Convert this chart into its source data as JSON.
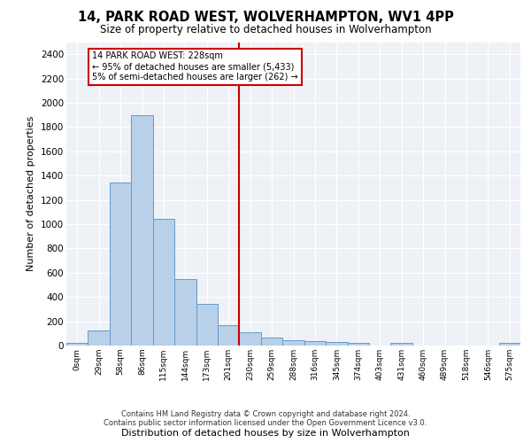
{
  "title1": "14, PARK ROAD WEST, WOLVERHAMPTON, WV1 4PP",
  "title2": "Size of property relative to detached houses in Wolverhampton",
  "xlabel": "Distribution of detached houses by size in Wolverhampton",
  "ylabel": "Number of detached properties",
  "footer1": "Contains HM Land Registry data © Crown copyright and database right 2024.",
  "footer2": "Contains public sector information licensed under the Open Government Licence v3.0.",
  "bin_labels": [
    "0sqm",
    "29sqm",
    "58sqm",
    "86sqm",
    "115sqm",
    "144sqm",
    "173sqm",
    "201sqm",
    "230sqm",
    "259sqm",
    "288sqm",
    "316sqm",
    "345sqm",
    "374sqm",
    "403sqm",
    "431sqm",
    "460sqm",
    "489sqm",
    "518sqm",
    "546sqm",
    "575sqm"
  ],
  "bar_values": [
    20,
    125,
    1345,
    1895,
    1045,
    545,
    340,
    170,
    110,
    65,
    42,
    33,
    28,
    20,
    0,
    25,
    0,
    0,
    0,
    0,
    20
  ],
  "bar_color": "#b8d0e8",
  "bar_edge_color": "#6699cc",
  "vline_x": 8,
  "annotation_line1": "14 PARK ROAD WEST: 228sqm",
  "annotation_line2": "← 95% of detached houses are smaller (5,433)",
  "annotation_line3": "5% of semi-detached houses are larger (262) →",
  "ylim": [
    0,
    2500
  ],
  "yticks": [
    0,
    200,
    400,
    600,
    800,
    1000,
    1200,
    1400,
    1600,
    1800,
    2000,
    2200,
    2400
  ],
  "box_color": "#cc0000",
  "bg_color": "#eef2f7"
}
